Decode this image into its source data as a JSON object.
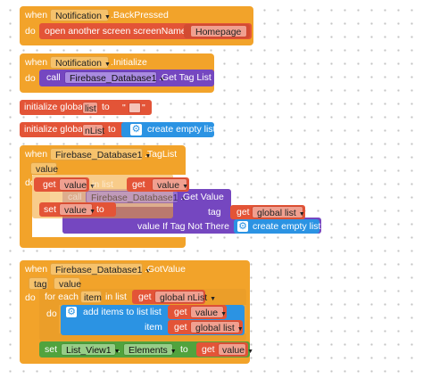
{
  "block1": {
    "when": "when",
    "component": "Notification",
    "event": ".BackPressed",
    "do": "do",
    "action": "open another screen  screenName",
    "screen_name": "Homepage"
  },
  "block2": {
    "when": "when",
    "component": "Notification",
    "event": ".Initialize",
    "do": "do",
    "call": "call",
    "call_component": "Firebase_Database1",
    "method": ".Get Tag List"
  },
  "block3": {
    "label": "initialize global",
    "var_name": "list",
    "to": "to"
  },
  "block4": {
    "label": "initialize global",
    "var_name": "nList",
    "to": "to",
    "value": "create empty list"
  },
  "block5": {
    "when": "when",
    "component": "Firebase_Database1",
    "event": ".TagList",
    "param": "value",
    "do": "do",
    "get": "get",
    "get_var": "value",
    "in_list": "in list",
    "get2": "get",
    "get2_var": "value",
    "call": "call",
    "call_component": "Firebase_Database1",
    "call_method": ".Get Value",
    "set": "set",
    "set_var": "value",
    "to": "to",
    "tag_label": "tag",
    "tag_get": "get",
    "tag_var": "global list",
    "not_there_label": "value If Tag Not There",
    "not_there_value": "create empty list"
  },
  "block6": {
    "when": "when",
    "component": "Firebase_Database1",
    "event": ".GotValue",
    "param1": "tag",
    "param2": "value",
    "do": "do",
    "for_each": "for each",
    "item": "item",
    "in_list": "in list",
    "get1": "get",
    "get1_var": "global nList",
    "do2": "do",
    "add_items": "add items to list",
    "list_label": "list",
    "list_get": "get",
    "list_var": "value",
    "item_label": "item",
    "item_get": "get",
    "item_var": "global list",
    "set": "set",
    "set_component": "List_View1",
    "set_property": "Elements",
    "to": "to",
    "to_get": "get",
    "to_var": "value"
  },
  "colors": {
    "event": "#f2a32a",
    "variable": "#e35437",
    "component": "#7547c0",
    "list": "#2b93e3",
    "setter": "#51a33e"
  }
}
